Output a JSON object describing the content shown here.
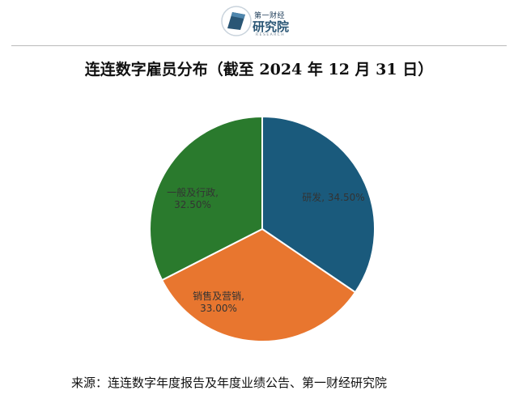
{
  "header": {
    "logo_top": "第一财经",
    "logo_main": "研究院",
    "logo_sub": "RESEARCH"
  },
  "title": "连连数字雇员分布（截至 2024 年 12 月 31 日）",
  "source": "来源：连连数字年度报告及年度业绩公告、第一财经研究院",
  "chart_data": {
    "type": "pie",
    "slices": [
      {
        "label": "研发",
        "value": 34.5,
        "value_text": "34.50%",
        "color": "#1a5a7c"
      },
      {
        "label": "销售及营销",
        "value": 33.0,
        "value_text": "33.00%",
        "color": "#e8762f"
      },
      {
        "label": "一般及行政",
        "value": 32.5,
        "value_text": "32.50%",
        "color": "#2a7a2d"
      }
    ],
    "start": "12 o'clock",
    "direction": "clockwise"
  }
}
